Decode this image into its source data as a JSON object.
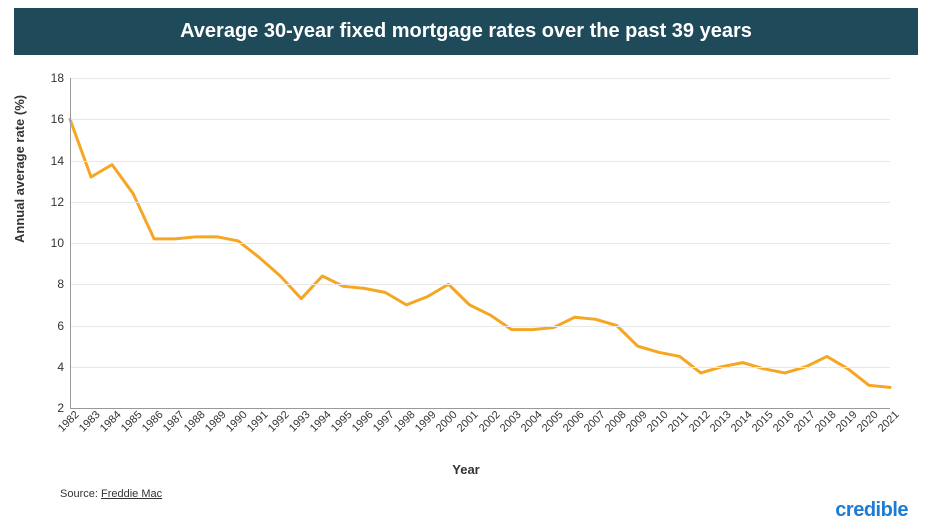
{
  "title": "Average 30-year fixed mortgage rates over the past 39 years",
  "chart": {
    "type": "line",
    "x_label": "Year",
    "y_label": "Annual average rate (%)",
    "years": [
      1982,
      1983,
      1984,
      1985,
      1986,
      1987,
      1988,
      1989,
      1990,
      1991,
      1992,
      1993,
      1994,
      1995,
      1996,
      1997,
      1998,
      1999,
      2000,
      2001,
      2002,
      2003,
      2004,
      2005,
      2006,
      2007,
      2008,
      2009,
      2010,
      2011,
      2012,
      2013,
      2014,
      2015,
      2016,
      2017,
      2018,
      2019,
      2020,
      2021
    ],
    "values": [
      16.0,
      13.2,
      13.8,
      12.4,
      10.2,
      10.2,
      10.3,
      10.3,
      10.1,
      9.3,
      8.4,
      7.3,
      8.4,
      7.9,
      7.8,
      7.6,
      7.0,
      7.4,
      8.0,
      7.0,
      6.5,
      5.8,
      5.8,
      5.9,
      6.4,
      6.3,
      6.0,
      5.0,
      4.7,
      4.5,
      3.7,
      4.0,
      4.2,
      3.9,
      3.7,
      4.0,
      4.5,
      3.9,
      3.1,
      3.0
    ],
    "line_color": "#f5a623",
    "line_width": 3,
    "background_color": "#ffffff",
    "grid_color": "#e8e8e8",
    "axis_color": "#999999",
    "ylim": [
      2,
      18
    ],
    "ytick_step": 2,
    "title_bg": "#1e4a5a",
    "title_color": "#ffffff",
    "title_fontsize": 20,
    "label_fontsize": 13,
    "tick_fontsize": 12
  },
  "source_prefix": "Source: ",
  "source_name": "Freddie Mac",
  "brand": "credible",
  "brand_color": "#1c7cd5"
}
